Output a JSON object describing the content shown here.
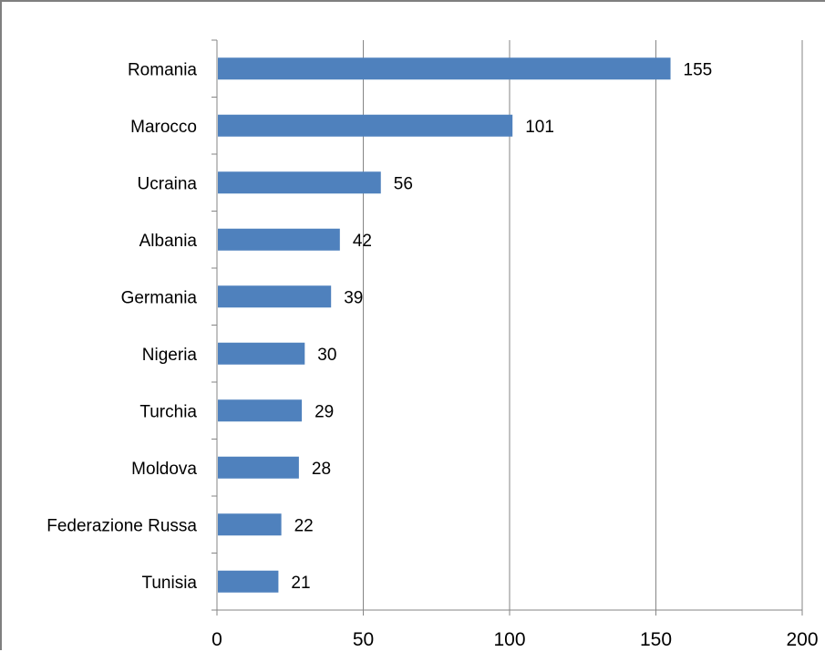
{
  "chart_data": {
    "type": "bar",
    "orientation": "horizontal",
    "categories": [
      "Romania",
      "Marocco",
      "Ucraina",
      "Albania",
      "Germania",
      "Nigeria",
      "Turchia",
      "Moldova",
      "Federazione Russa",
      "Tunisia"
    ],
    "values": [
      155,
      101,
      56,
      42,
      39,
      30,
      29,
      28,
      22,
      21
    ],
    "value_labels": [
      "155",
      "101",
      "56",
      "42",
      "39",
      "30",
      "29",
      "28",
      "22",
      "21"
    ],
    "xlim": [
      0,
      200
    ],
    "xticks": [
      0,
      50,
      100,
      150,
      200
    ],
    "xtick_labels": [
      "0",
      "50",
      "100",
      "150",
      "200"
    ],
    "grid": "vertical",
    "legend": "none",
    "bar_color": "#4f81bd",
    "grid_color": "#868686"
  }
}
